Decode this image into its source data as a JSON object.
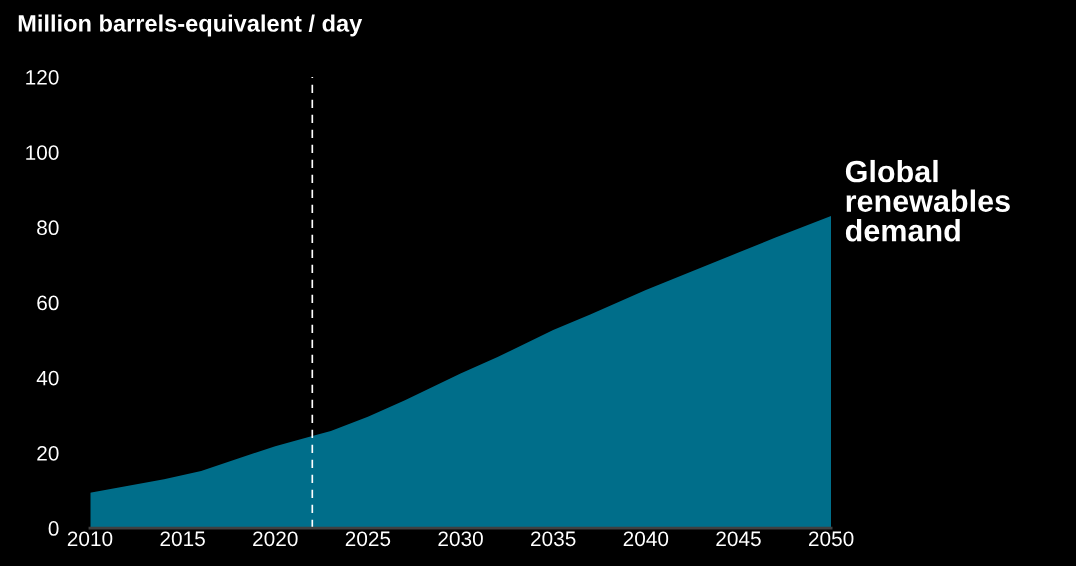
{
  "chart_data": {
    "type": "area",
    "title": "Million barrels-equivalent / day",
    "x": [
      2010,
      2012,
      2014,
      2016,
      2018,
      2020,
      2022,
      2023,
      2025,
      2027,
      2030,
      2032,
      2035,
      2037,
      2040,
      2042,
      2045,
      2047,
      2050
    ],
    "series": [
      {
        "color": "#006e8a",
        "values": [
          9.4,
          11.2,
          13.0,
          15.2,
          18.5,
          21.8,
          24.5,
          25.8,
          29.6,
          34.0,
          41.1,
          45.5,
          52.7,
          56.8,
          63.3,
          67.3,
          73.3,
          77.3,
          83.0
        ]
      }
    ],
    "xlim": [
      2010,
      2050
    ],
    "xticks": [
      2010,
      2015,
      2020,
      2025,
      2030,
      2035,
      2040,
      2045,
      2050
    ],
    "ylim": [
      0,
      120
    ],
    "yticks": [
      0,
      20,
      40,
      60,
      80,
      100,
      120
    ],
    "ref_lines": [
      {
        "axis": "x",
        "value": 2022,
        "label": null,
        "color": "#ffffff",
        "line_style": "dashed"
      }
    ],
    "annotations": [
      "Global renewables demand"
    ],
    "grid": false
  }
}
